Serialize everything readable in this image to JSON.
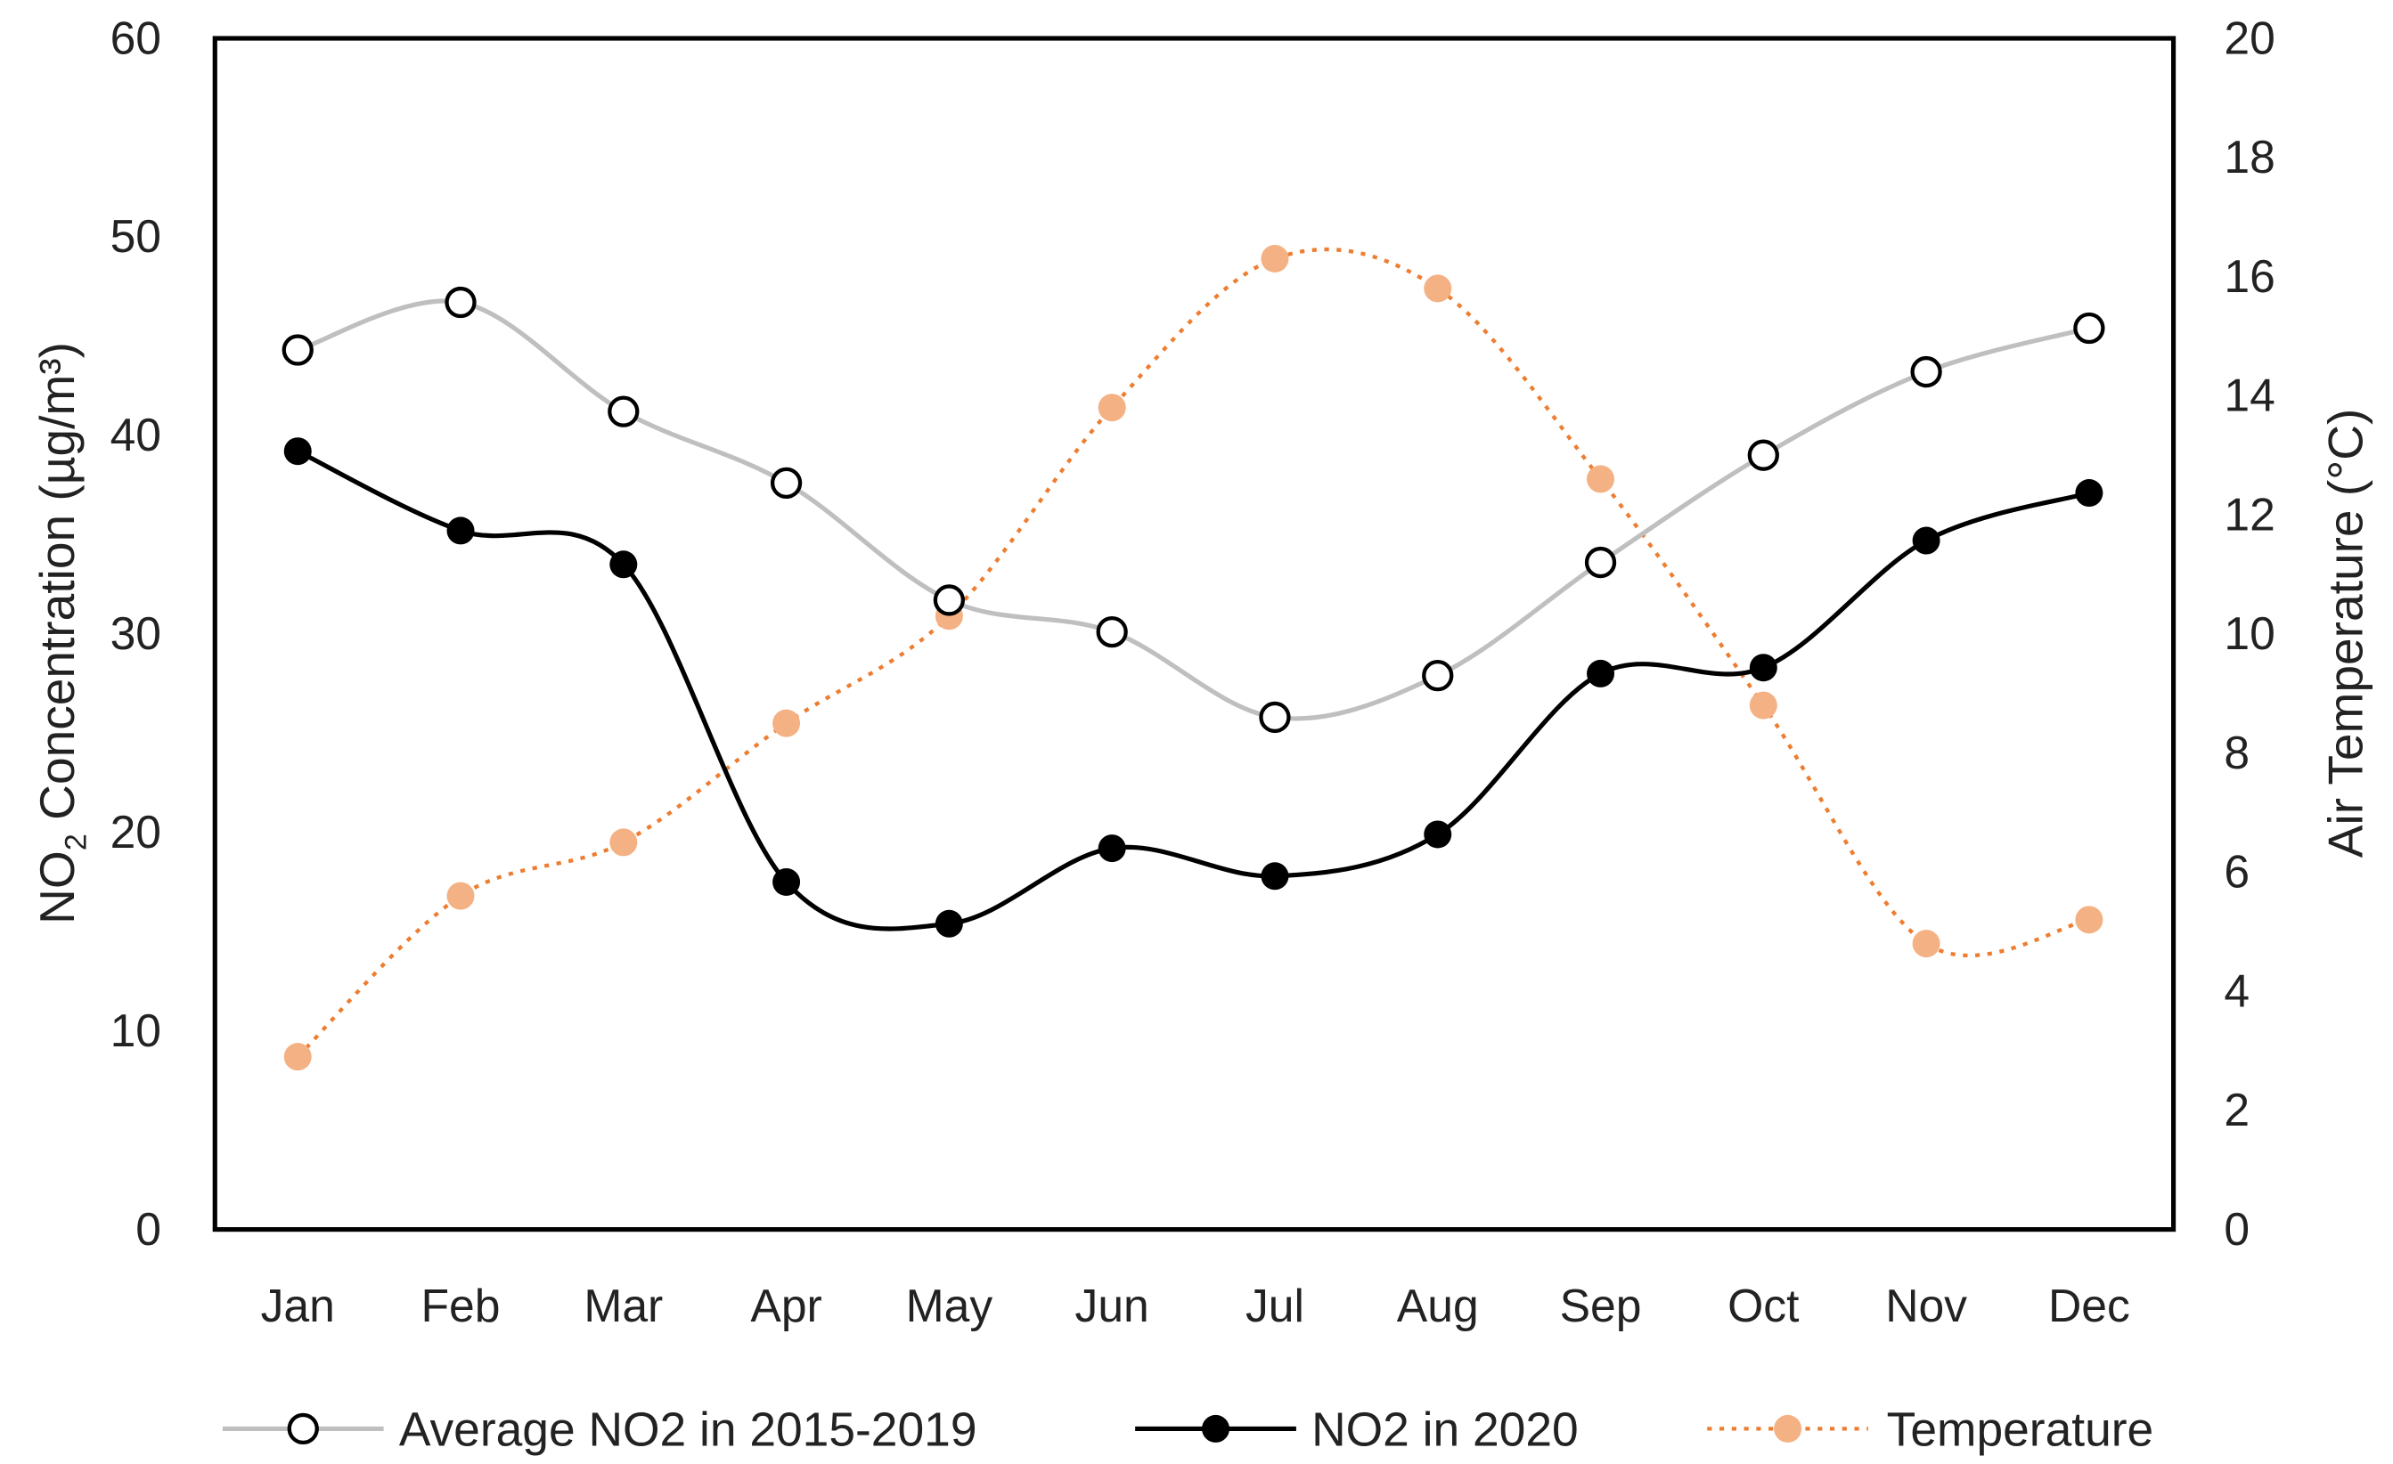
{
  "chart_data": {
    "type": "line",
    "categories": [
      "Jan",
      "Feb",
      "Mar",
      "Apr",
      "May",
      "Jun",
      "Jul",
      "Aug",
      "Sep",
      "Oct",
      "Nov",
      "Dec"
    ],
    "ylabel_main": "NO",
    "ylabel_sub": "2",
    "ylabel_rest": " Concentration (µg/m³)",
    "y2label": "Air Temperature (°C)",
    "ylim": [
      0,
      60
    ],
    "y_ticks": [
      "0",
      "10",
      "20",
      "30",
      "40",
      "50",
      "60"
    ],
    "y2lim": [
      0,
      20
    ],
    "y2_ticks": [
      "0",
      "2",
      "4",
      "6",
      "8",
      "10",
      "12",
      "14",
      "16",
      "18",
      "20"
    ],
    "grid": false,
    "legend_position": "bottom",
    "series": [
      {
        "name": "Average NO2 in 2015-2019",
        "axis": "left",
        "color": "#bfbfbf",
        "marker": "open-circle",
        "values": [
          44.3,
          46.7,
          41.2,
          37.6,
          31.7,
          30.1,
          25.8,
          27.9,
          33.6,
          39.0,
          43.2,
          45.4
        ]
      },
      {
        "name": "NO2 in 2020",
        "axis": "left",
        "color": "#000000",
        "marker": "filled-circle",
        "values": [
          39.2,
          35.2,
          33.5,
          17.5,
          15.4,
          19.2,
          17.8,
          19.9,
          28.0,
          28.3,
          34.7,
          37.1
        ]
      },
      {
        "name": "Temperature",
        "axis": "right",
        "color": "#ed7d31",
        "marker_color": "#f4b183",
        "marker": "filled-circle",
        "line_style": "dotted",
        "values": [
          2.9,
          5.6,
          6.5,
          8.5,
          10.3,
          13.8,
          16.3,
          15.8,
          12.6,
          8.8,
          4.8,
          5.2
        ]
      }
    ]
  }
}
